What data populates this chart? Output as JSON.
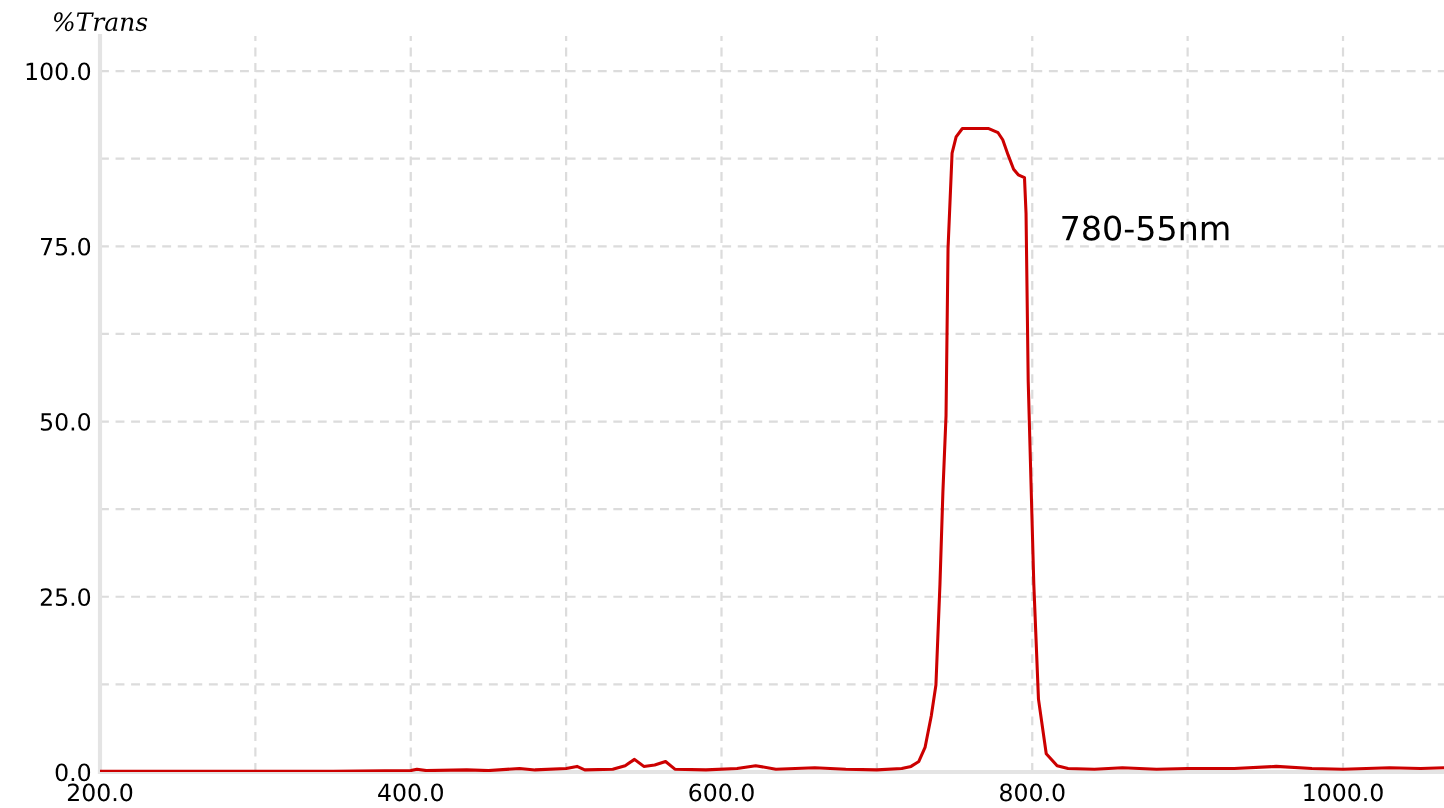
{
  "chart_data": {
    "type": "line",
    "ylabel": "%Trans",
    "annotations": [
      "780-55nm"
    ],
    "x": [
      200,
      250,
      300,
      350,
      400,
      404,
      410,
      436,
      450,
      470,
      480,
      500,
      507,
      512,
      530,
      538,
      544,
      550,
      557,
      564,
      570,
      590,
      610,
      622,
      635,
      660,
      680,
      700,
      716,
      722,
      727,
      731,
      735,
      738,
      740.6,
      742.5,
      744.5,
      745.8,
      748.4,
      751,
      755,
      772,
      778,
      781,
      784.5,
      788,
      791,
      795,
      796,
      797.4,
      801,
      804,
      809,
      816,
      823,
      840,
      858,
      880,
      900,
      930,
      957,
      980,
      1000,
      1030,
      1050,
      1065
    ],
    "series": [
      {
        "color": "#cc0000",
        "values": [
          0.1,
          0.1,
          0.1,
          0.1,
          0.2,
          0.4,
          0.2,
          0.3,
          0.2,
          0.5,
          0.3,
          0.5,
          0.8,
          0.3,
          0.4,
          0.9,
          1.8,
          0.8,
          1.0,
          1.5,
          0.4,
          0.3,
          0.5,
          0.9,
          0.4,
          0.6,
          0.4,
          0.3,
          0.5,
          0.8,
          1.5,
          3.5,
          8,
          12.4,
          26.8,
          40,
          50.8,
          74.7,
          88.3,
          90.6,
          91.8,
          91.8,
          91.2,
          90.2,
          88,
          86,
          85.2,
          84.8,
          79.7,
          55.7,
          26.8,
          10.4,
          2.6,
          0.9,
          0.5,
          0.4,
          0.6,
          0.4,
          0.5,
          0.5,
          0.8,
          0.5,
          0.4,
          0.6,
          0.5,
          0.6
        ]
      }
    ],
    "xlim": [
      200,
      1065
    ],
    "ylim": [
      0,
      105
    ],
    "xticks": [
      {
        "value": 200,
        "label": "200.0"
      },
      {
        "value": 300,
        "label": null
      },
      {
        "value": 400,
        "label": "400.0"
      },
      {
        "value": 500,
        "label": null
      },
      {
        "value": 600,
        "label": "600.0"
      },
      {
        "value": 700,
        "label": null
      },
      {
        "value": 800,
        "label": "800.0"
      },
      {
        "value": 900,
        "label": null
      },
      {
        "value": 1000,
        "label": "1000.0"
      }
    ],
    "yticks": [
      {
        "value": 0,
        "label": "0.0"
      },
      {
        "value": 12.5,
        "label": null
      },
      {
        "value": 25,
        "label": "25.0"
      },
      {
        "value": 37.5,
        "label": null
      },
      {
        "value": 50,
        "label": "50.0"
      },
      {
        "value": 62.5,
        "label": null
      },
      {
        "value": 75,
        "label": "75.0"
      },
      {
        "value": 87.5,
        "label": null
      },
      {
        "value": 100,
        "label": "100.0"
      }
    ],
    "grid": true,
    "marker": "none",
    "line_style": "solid"
  }
}
